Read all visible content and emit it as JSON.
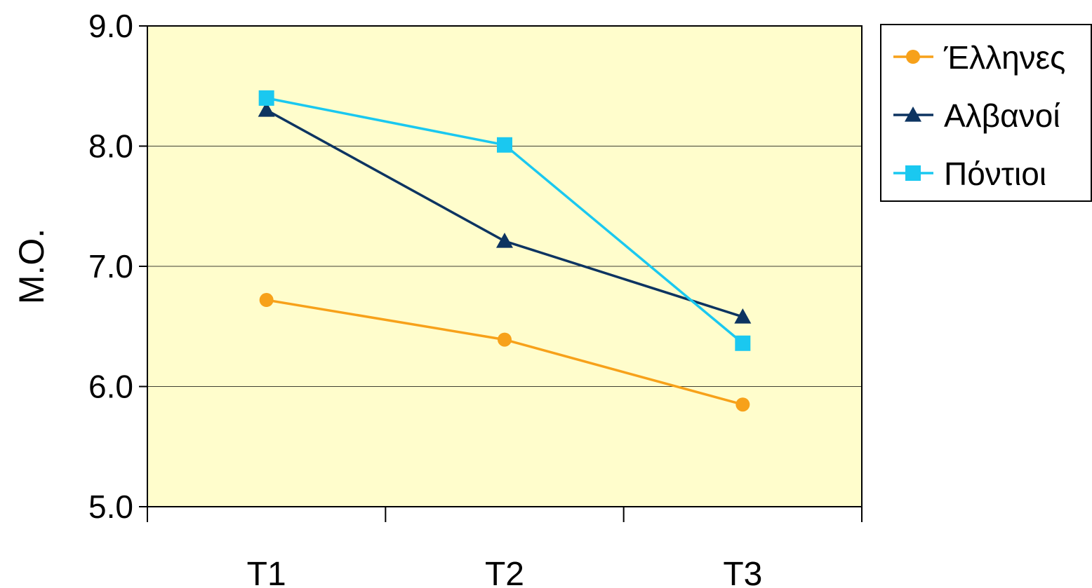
{
  "chart_data": {
    "type": "line",
    "title": "",
    "xlabel": "",
    "ylabel": "Μ.Ο.",
    "categories": [
      "T1",
      "T2",
      "T3"
    ],
    "ylim": [
      5.0,
      9.0
    ],
    "yticks": [
      "5.0",
      "6.0",
      "7.0",
      "8.0",
      "9.0"
    ],
    "grid": true,
    "legend_position": "top-right",
    "plot_background": "#FFFDCC",
    "series": [
      {
        "name": "Έλληνες",
        "values": [
          6.72,
          6.39,
          5.85
        ],
        "color": "#F7A11A",
        "marker": "circle"
      },
      {
        "name": "Αλβανοί",
        "values": [
          8.3,
          7.21,
          6.58
        ],
        "color": "#0D3461",
        "marker": "triangle"
      },
      {
        "name": "Πόντιοι",
        "values": [
          8.4,
          8.01,
          6.36
        ],
        "color": "#1AC8F0",
        "marker": "square"
      }
    ]
  }
}
